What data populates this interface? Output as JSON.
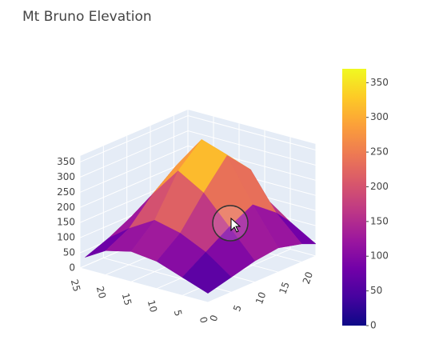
{
  "chart_data": {
    "type": "surface",
    "title": "Mt Bruno Elevation",
    "x": [
      0,
      5,
      10,
      15,
      20,
      24
    ],
    "y": [
      0,
      5,
      10,
      15,
      20,
      23
    ],
    "z": [
      [
        30,
        60,
        90,
        100,
        80,
        40
      ],
      [
        50,
        110,
        150,
        170,
        120,
        70
      ],
      [
        70,
        160,
        250,
        300,
        200,
        110
      ],
      [
        80,
        200,
        340,
        370,
        260,
        130
      ],
      [
        60,
        140,
        260,
        290,
        180,
        90
      ],
      [
        40,
        90,
        150,
        160,
        110,
        60
      ]
    ],
    "xlim": [
      0,
      25
    ],
    "xticks": [
      0,
      5,
      10,
      15,
      20,
      25
    ],
    "ylim": [
      0,
      23
    ],
    "yticks": [
      0,
      5,
      10,
      15,
      20
    ],
    "zlim": [
      0,
      370
    ],
    "zticks": [
      0,
      50,
      100,
      150,
      200,
      250,
      300,
      350
    ],
    "colorscale": [
      "#0d0887",
      "#46039f",
      "#7201a8",
      "#9c179e",
      "#bd3786",
      "#d8576b",
      "#ed7953",
      "#fb9f3a",
      "#fdca26",
      "#f0f921"
    ],
    "colorbar_ticks": [
      0,
      50,
      100,
      150,
      200,
      250,
      300,
      350
    ]
  }
}
